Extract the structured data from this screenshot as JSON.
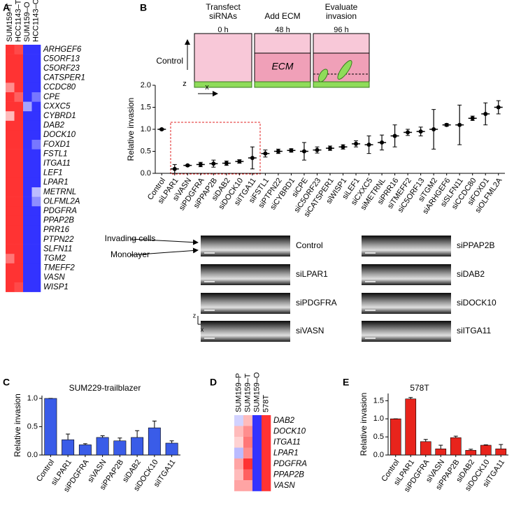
{
  "panel_labels": [
    "A",
    "B",
    "C",
    "D",
    "E"
  ],
  "chart_data": [
    {
      "type": "heatmap",
      "columns": [
        "SUM159–T",
        "HCC1143–T",
        "SUM159–O",
        "HCC1143–O"
      ],
      "rows": [
        "ARHGEF6",
        "C5ORF13",
        "C5ORF23",
        "CATSPER1",
        "CCDC80",
        "CPE",
        "CXXC5",
        "CYBRD1",
        "DAB2",
        "DOCK10",
        "FOXD1",
        "FSTL1",
        "ITGA11",
        "LEF1",
        "LPAR1",
        "METRNL",
        "OLFML2A",
        "PDGFRA",
        "PPAP2B",
        "PRR16",
        "PTPN22",
        "SLFN11",
        "TGM2",
        "TMEFF2",
        "VASN",
        "WISP1"
      ],
      "values": [
        [
          0.9,
          0.8,
          -0.9,
          -0.9
        ],
        [
          0.9,
          0.9,
          -0.9,
          -0.9
        ],
        [
          0.9,
          0.9,
          -0.9,
          -0.9
        ],
        [
          0.9,
          0.9,
          -0.9,
          -0.9
        ],
        [
          0.5,
          0.9,
          -0.9,
          -0.9
        ],
        [
          0.9,
          0.7,
          -0.9,
          -0.6
        ],
        [
          0.9,
          0.9,
          -0.4,
          -0.9
        ],
        [
          0.3,
          0.9,
          -0.9,
          -0.9
        ],
        [
          0.9,
          0.9,
          -0.9,
          -0.9
        ],
        [
          0.9,
          0.9,
          -0.9,
          -0.9
        ],
        [
          0.9,
          0.9,
          -0.9,
          -0.6
        ],
        [
          0.9,
          0.9,
          -0.9,
          -0.9
        ],
        [
          0.9,
          0.9,
          -0.9,
          -0.9
        ],
        [
          0.9,
          0.9,
          -0.9,
          -0.9
        ],
        [
          0.9,
          0.9,
          -0.9,
          -0.9
        ],
        [
          0.9,
          0.9,
          -0.9,
          -0.3
        ],
        [
          0.9,
          0.9,
          -0.9,
          -0.5
        ],
        [
          0.9,
          0.9,
          -0.9,
          -0.9
        ],
        [
          0.9,
          0.9,
          -0.9,
          -0.9
        ],
        [
          0.9,
          0.9,
          -0.9,
          -0.9
        ],
        [
          0.9,
          0.9,
          -0.9,
          -0.9
        ],
        [
          0.9,
          0.9,
          -0.9,
          -0.9
        ],
        [
          0.6,
          0.9,
          -0.9,
          -0.9
        ],
        [
          0.9,
          0.9,
          -0.9,
          -0.9
        ],
        [
          0.9,
          0.9,
          -0.9,
          -0.9
        ],
        [
          0.9,
          0.8,
          -0.9,
          -0.9
        ]
      ],
      "zlim": [
        -1,
        1
      ],
      "colors": [
        "#1c1cff",
        "#ffffff",
        "#ff1c1c"
      ]
    },
    {
      "type": "dot",
      "ylabel": "Relative invasion",
      "categories": [
        "Control",
        "siLPAR1",
        "siVASN",
        "siPDGFRA",
        "siPPAP2B",
        "siDAB2",
        "siDOCK10",
        "siITGA11",
        "siFSTL1",
        "siPTPN22",
        "siCYBRD1",
        "siCPE",
        "siC5ORF23",
        "siCATSPER1",
        "siWISP1",
        "siLEF1",
        "siCXXC5",
        "siMETRNL",
        "siPRR16",
        "siTMEFF2",
        "siC5ORF13",
        "siTGM2",
        "siARHGEF6",
        "siSLFN11",
        "siCCDC80",
        "siFOXD1",
        "siOLFML2A"
      ],
      "values": [
        1.0,
        0.1,
        0.18,
        0.2,
        0.22,
        0.23,
        0.27,
        0.35,
        0.45,
        0.5,
        0.52,
        0.5,
        0.53,
        0.57,
        0.6,
        0.67,
        0.65,
        0.7,
        0.85,
        0.93,
        0.95,
        1.0,
        1.1,
        1.1,
        1.25,
        1.35,
        1.5
      ],
      "errors": [
        0.02,
        0.1,
        0.02,
        0.05,
        0.08,
        0.05,
        0.04,
        0.25,
        0.08,
        0.05,
        0.04,
        0.2,
        0.07,
        0.05,
        0.05,
        0.07,
        0.2,
        0.17,
        0.25,
        0.07,
        0.1,
        0.45,
        0.03,
        0.45,
        0.05,
        0.25,
        0.15
      ],
      "ylim": [
        0,
        2
      ],
      "yticks": [
        {
          "value": 0,
          "label": "0.0"
        },
        {
          "value": 0.5,
          "label": "0.5"
        },
        {
          "value": 1,
          "label": "1.0"
        },
        {
          "value": 1.5,
          "label": "1.5"
        },
        {
          "value": 2,
          "label": "2.0"
        }
      ],
      "color": "#000000"
    },
    {
      "type": "bar",
      "title": "SUM229-trailblazer",
      "ylabel": "Relative invasion",
      "categories": [
        "Control",
        "siLPAR1",
        "siPDGFRA",
        "siVASN",
        "siPPAP2B",
        "siDAB2",
        "siDOCK10",
        "siITGA11"
      ],
      "values": [
        1.0,
        0.27,
        0.18,
        0.31,
        0.25,
        0.31,
        0.48,
        0.21
      ],
      "errors": [
        0,
        0.1,
        0.02,
        0.03,
        0.05,
        0.12,
        0.12,
        0.04
      ],
      "ylim": [
        0,
        1.05
      ],
      "yticks": [
        {
          "value": 0,
          "label": "0.0"
        },
        {
          "value": 0.5,
          "label": "0.5"
        },
        {
          "value": 1,
          "label": "1.0"
        }
      ],
      "color": "#3a5ce8"
    },
    {
      "type": "heatmap",
      "columns": [
        "SUM159–P",
        "SUM159–T",
        "SUM159–O",
        "578T"
      ],
      "rows": [
        "DAB2",
        "DOCK10",
        "ITGA11",
        "LPAR1",
        "PDGFRA",
        "PPAP2B",
        "VASN"
      ],
      "values": [
        [
          -0.2,
          0.3,
          -0.9,
          0.9
        ],
        [
          0.3,
          0.5,
          -0.9,
          0.9
        ],
        [
          0.2,
          0.6,
          -0.9,
          0.9
        ],
        [
          -0.3,
          0.5,
          -0.9,
          0.9
        ],
        [
          0.4,
          0.9,
          -0.9,
          0.9
        ],
        [
          0.3,
          0.7,
          -0.9,
          0.9
        ],
        [
          0.4,
          0.4,
          -0.9,
          0.9
        ]
      ],
      "zlim": [
        -1,
        1
      ],
      "colors": [
        "#1c1cff",
        "#ffffff",
        "#ff1c1c"
      ]
    },
    {
      "type": "bar",
      "title": "578T",
      "ylabel": "Relative invasion",
      "categories": [
        "Control",
        "siLPAR1",
        "siPDGFRA",
        "siVASN",
        "siPPAP2B",
        "siDAB2",
        "siDOCK10",
        "siITGA11"
      ],
      "values": [
        1.0,
        1.55,
        0.37,
        0.17,
        0.48,
        0.13,
        0.27,
        0.17
      ],
      "errors": [
        0,
        0.04,
        0.06,
        0.1,
        0.04,
        0.03,
        0.01,
        0.12
      ],
      "ylim": [
        0,
        1.7
      ],
      "yticks": [
        {
          "value": 0,
          "label": "0.0"
        },
        {
          "value": 0.5,
          "label": "0.5"
        },
        {
          "value": 1,
          "label": "1.0"
        },
        {
          "value": 1.5,
          "label": "1.5"
        }
      ],
      "color": "#e8241c"
    }
  ],
  "schematic": {
    "steps": [
      {
        "label": [
          "Transfect",
          "siRNAs"
        ],
        "time": "0 h"
      },
      {
        "label": [
          "Add ECM"
        ],
        "time": "48 h"
      },
      {
        "label": [
          "Evaluate",
          "invasion"
        ],
        "time": "96 h"
      }
    ],
    "side_label": "Control",
    "ecm": "ECM",
    "z": "z",
    "x": "x"
  },
  "images": {
    "labels": [
      "Control",
      "siLPAR1",
      "siPDGFRA",
      "siVASN",
      "siPPAP2B",
      "siDAB2",
      "siDOCK10",
      "siITGA11"
    ],
    "invading": "Invading cells",
    "monolayer": "Monolayer",
    "z": "z",
    "x": "x"
  }
}
